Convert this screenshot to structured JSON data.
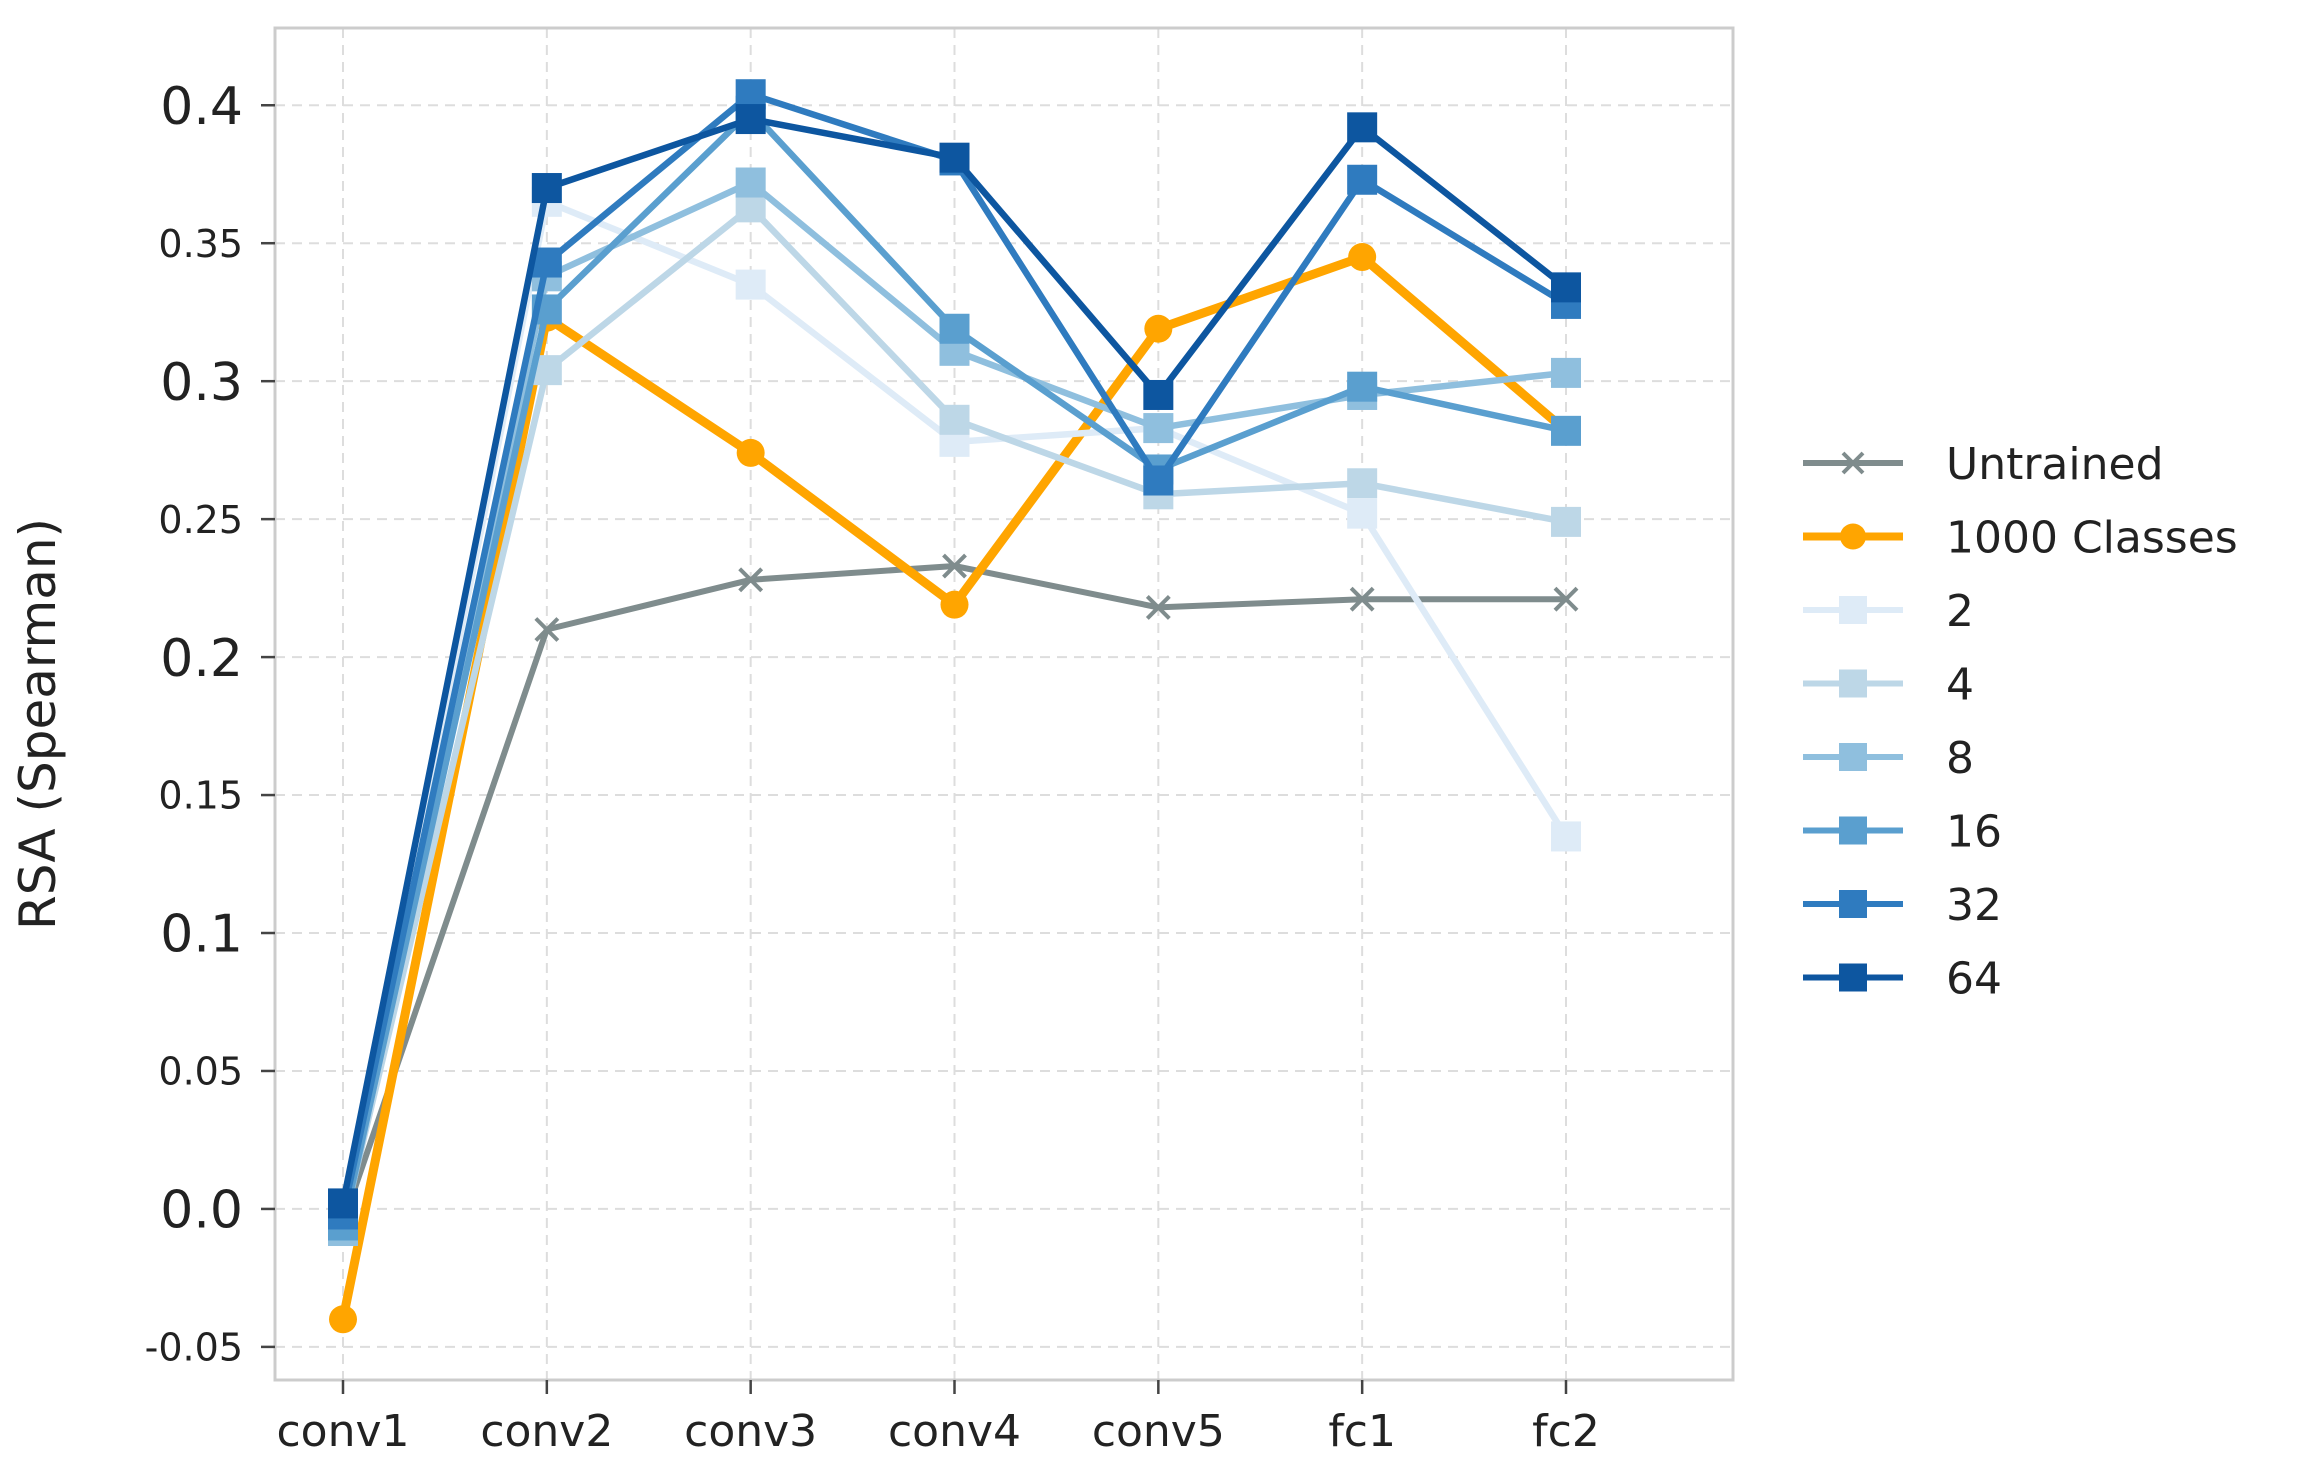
{
  "chart_data": {
    "type": "line",
    "title": "",
    "xlabel": "",
    "ylabel": "RSA (Spearman)",
    "categories": [
      "conv1",
      "conv2",
      "conv3",
      "conv4",
      "conv5",
      "fc1",
      "fc2"
    ],
    "ylim": [
      -0.062,
      0.428
    ],
    "y_ticks": [
      {
        "value": -0.05,
        "label": "-0.05",
        "major": false
      },
      {
        "value": 0.0,
        "label": "0.0",
        "major": true
      },
      {
        "value": 0.05,
        "label": "0.05",
        "major": false
      },
      {
        "value": 0.1,
        "label": "0.1",
        "major": true
      },
      {
        "value": 0.15,
        "label": "0.15",
        "major": false
      },
      {
        "value": 0.2,
        "label": "0.2",
        "major": true
      },
      {
        "value": 0.25,
        "label": "0.25",
        "major": false
      },
      {
        "value": 0.3,
        "label": "0.3",
        "major": true
      },
      {
        "value": 0.35,
        "label": "0.35",
        "major": false
      },
      {
        "value": 0.4,
        "label": "0.4",
        "major": true
      }
    ],
    "grid": true,
    "legend_position": "right",
    "series": [
      {
        "name": "Untrained",
        "color": "#7f8c8d",
        "marker": "x",
        "values": [
          -0.005,
          0.21,
          0.228,
          0.233,
          0.218,
          0.221,
          0.221
        ]
      },
      {
        "name": "1000 Classes",
        "color": "#ffa500",
        "marker": "circle",
        "values": [
          -0.04,
          0.323,
          0.274,
          0.219,
          0.319,
          0.345,
          0.282
        ]
      },
      {
        "name": "2",
        "color": "#deebf7",
        "marker": "square",
        "values": [
          -0.004,
          0.365,
          0.335,
          0.278,
          0.283,
          0.252,
          0.135
        ]
      },
      {
        "name": "4",
        "color": "#bdd7e7",
        "marker": "square",
        "values": [
          -0.006,
          0.304,
          0.363,
          0.286,
          0.259,
          0.263,
          0.249
        ]
      },
      {
        "name": "8",
        "color": "#8fbfde",
        "marker": "square",
        "values": [
          -0.008,
          0.338,
          0.372,
          0.311,
          0.283,
          0.295,
          0.303
        ]
      },
      {
        "name": "16",
        "color": "#5a9fcf",
        "marker": "square",
        "values": [
          -0.006,
          0.326,
          0.398,
          0.319,
          0.268,
          0.298,
          0.282
        ]
      },
      {
        "name": "32",
        "color": "#2f7bbf",
        "marker": "square",
        "values": [
          -0.002,
          0.343,
          0.404,
          0.38,
          0.264,
          0.373,
          0.328
        ]
      },
      {
        "name": "64",
        "color": "#0d56a0",
        "marker": "square",
        "values": [
          0.002,
          0.37,
          0.395,
          0.381,
          0.295,
          0.392,
          0.334
        ]
      }
    ]
  }
}
